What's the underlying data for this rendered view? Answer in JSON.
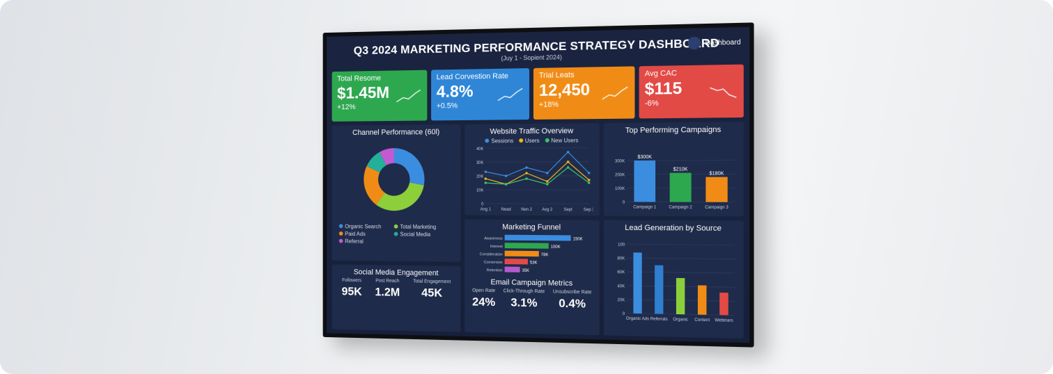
{
  "header": {
    "title": "Q3 2024 MARKETING PERFORMANCE STRATEGY DASHBOARD",
    "subtitle": "(Juy 1 - Sopient 2024)",
    "badge": "Dashboard"
  },
  "kpis": [
    {
      "label": "Total Resome",
      "value": "$1.45M",
      "change": "+12%",
      "color": "#2ea84f"
    },
    {
      "label": "Lead Corvestion Rate",
      "value": "4.8%",
      "change": "+0.5%",
      "color": "#2f86d6"
    },
    {
      "label": "Trial Leats",
      "value": "12,450",
      "change": "+18%",
      "color": "#f08c16"
    },
    {
      "label": "Avg CAC",
      "value": "$115",
      "change": "-6%",
      "color": "#e24a46"
    }
  ],
  "chart_data": [
    {
      "type": "pie",
      "title": "Channel Performance (60l)",
      "categories": [
        "Organic Search",
        "Total Marketing",
        "Paid Ads",
        "Social Media",
        "Referral"
      ],
      "values": [
        28,
        32,
        22,
        10,
        8
      ],
      "colors": [
        "#3b8de0",
        "#8ccf3a",
        "#f08c16",
        "#22b09a",
        "#c25bd1"
      ]
    },
    {
      "type": "line",
      "title": "Website Traffic Overview",
      "categories": [
        "Ang 1",
        "Nead",
        "Nen 2",
        "Avg 2",
        "Sept",
        "Sep 3"
      ],
      "series": [
        {
          "name": "Sessions",
          "color": "#3b8de0",
          "values": [
            23,
            20,
            26,
            22,
            37,
            22
          ]
        },
        {
          "name": "Users",
          "color": "#f0b416",
          "values": [
            18,
            14,
            22,
            16,
            30,
            17
          ]
        },
        {
          "name": "New Users",
          "color": "#3cc46a",
          "values": [
            15,
            14,
            18,
            14,
            26,
            15
          ]
        }
      ],
      "ylim": [
        0,
        40
      ],
      "yticks": [
        0,
        {
          "value": 10,
          "label": "10K"
        },
        {
          "value": 20,
          "label": "20K"
        },
        {
          "value": 30,
          "label": "30K"
        },
        {
          "value": 40,
          "label": "40K"
        }
      ],
      "grid": true
    },
    {
      "type": "bar",
      "title": "Top Performing Campaigns",
      "categories": [
        "Campaign 1",
        "Campaign 2",
        "Campaign 3"
      ],
      "values": [
        300,
        210,
        180
      ],
      "value_labels": [
        "$300K",
        "$210K",
        "$180K"
      ],
      "colors": [
        "#3b8de0",
        "#2ea84f",
        "#f08c16"
      ],
      "ylim": [
        0,
        400
      ],
      "yticks": [
        0,
        {
          "value": 100,
          "label": "100K"
        },
        {
          "value": 200,
          "label": "200K"
        },
        {
          "value": 300,
          "label": "300K"
        }
      ],
      "grid": true
    },
    {
      "type": "hbar",
      "title": "Marketing Funnel",
      "categories": [
        "Awareness",
        "Interest",
        "Consideration",
        "Conversion",
        "Retention"
      ],
      "values": [
        150,
        100,
        78,
        53,
        35
      ],
      "value_labels": [
        "150K",
        "100K",
        "78K",
        "53K",
        "35K"
      ],
      "colors": [
        "#3b8de0",
        "#2ea84f",
        "#f08c16",
        "#e24a46",
        "#b35bd1"
      ]
    },
    {
      "type": "bar",
      "title": "Lead Generation by Source",
      "categories": [
        "Organic Ads",
        "Referrals",
        "Organic",
        "Content",
        "Webinars"
      ],
      "values": [
        88,
        70,
        52,
        42,
        32
      ],
      "colors": [
        "#3b8de0",
        "#2f7fd0",
        "#8ccf3a",
        "#f08c16",
        "#e24a46"
      ],
      "ylim": [
        0,
        100
      ],
      "yticks": [
        0,
        {
          "value": 20,
          "label": "20K"
        },
        {
          "value": 40,
          "label": "40K"
        },
        {
          "value": 60,
          "label": "60K"
        },
        {
          "value": 80,
          "label": "80K"
        },
        100
      ],
      "grid": true
    }
  ],
  "social": {
    "title": "Social Media Engagement",
    "metrics": [
      {
        "label": "Followers",
        "value": "95K"
      },
      {
        "label": "Post Reach",
        "value": "1.2M"
      },
      {
        "label": "Total Engagement",
        "value": "45K"
      }
    ]
  },
  "email": {
    "title": "Email Campaign Metrics",
    "metrics": [
      {
        "label": "Open Rate",
        "value": "24%"
      },
      {
        "label": "Click-Through Rate",
        "value": "3.1%"
      },
      {
        "label": "Unsubscribe Rate",
        "value": "0.4%"
      }
    ]
  }
}
